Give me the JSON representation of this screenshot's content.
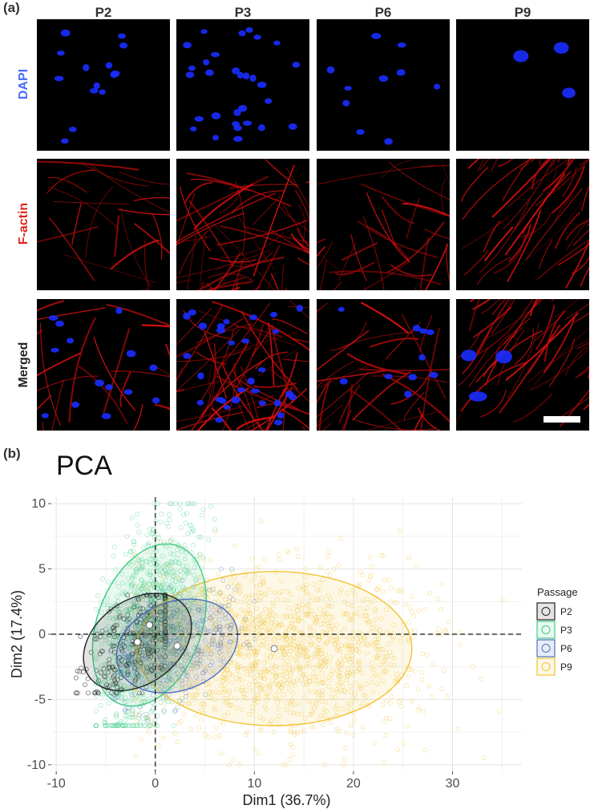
{
  "panel_a": {
    "label": "(a)",
    "columns": [
      "P2",
      "P3",
      "P6",
      "P9"
    ],
    "rows": [
      {
        "label": "DAPI",
        "color": "#4a6cff"
      },
      {
        "label": "F-actin",
        "color": "#e0241c"
      },
      {
        "label": "Merged",
        "color": "#222222"
      }
    ]
  },
  "panel_b": {
    "label": "(b)"
  },
  "chart_data": {
    "type": "scatter",
    "title": "PCA",
    "xlabel": "Dim1 (36.7%)",
    "ylabel": "Dim2 (17.4%)",
    "xlim": [
      -10.5,
      37
    ],
    "ylim": [
      -10.5,
      10.5
    ],
    "xticks": [
      -10,
      0,
      10,
      20,
      30
    ],
    "yticks": [
      -10,
      -5,
      0,
      5,
      10
    ],
    "grid": true,
    "reference_lines": {
      "x": 0,
      "y": 0
    },
    "legend": {
      "title": "Passage",
      "placement": "right",
      "entries": [
        "P2",
        "P3",
        "P6",
        "P9"
      ]
    },
    "series": [
      {
        "name": "P2",
        "color": "#222222",
        "centroid": [
          -1.8,
          -0.6
        ],
        "ellipse": {
          "rx": 6.0,
          "ry": 3.2,
          "angle_deg": 36
        },
        "x_range": [
          -8,
          1
        ],
        "y_range": [
          -4.5,
          3
        ]
      },
      {
        "name": "P3",
        "color": "#3ecb86",
        "centroid": [
          -0.6,
          0.7
        ],
        "ellipse": {
          "rx": 8.5,
          "ry": 4.0,
          "angle_deg": 70
        },
        "x_range": [
          -6,
          6
        ],
        "y_range": [
          -7,
          10
        ]
      },
      {
        "name": "P6",
        "color": "#4d6fbf",
        "centroid": [
          2.2,
          -0.9
        ],
        "ellipse": {
          "rx": 6.3,
          "ry": 3.4,
          "angle_deg": 20
        },
        "x_range": [
          -5,
          10
        ],
        "y_range": [
          -7,
          5
        ]
      },
      {
        "name": "P9",
        "color": "#f2c230",
        "centroid": [
          12.0,
          -1.1
        ],
        "ellipse": {
          "rx": 13.9,
          "ry": 5.9,
          "angle_deg": 0
        },
        "x_range": [
          -2,
          36
        ],
        "y_range": [
          -10,
          10
        ]
      }
    ]
  }
}
